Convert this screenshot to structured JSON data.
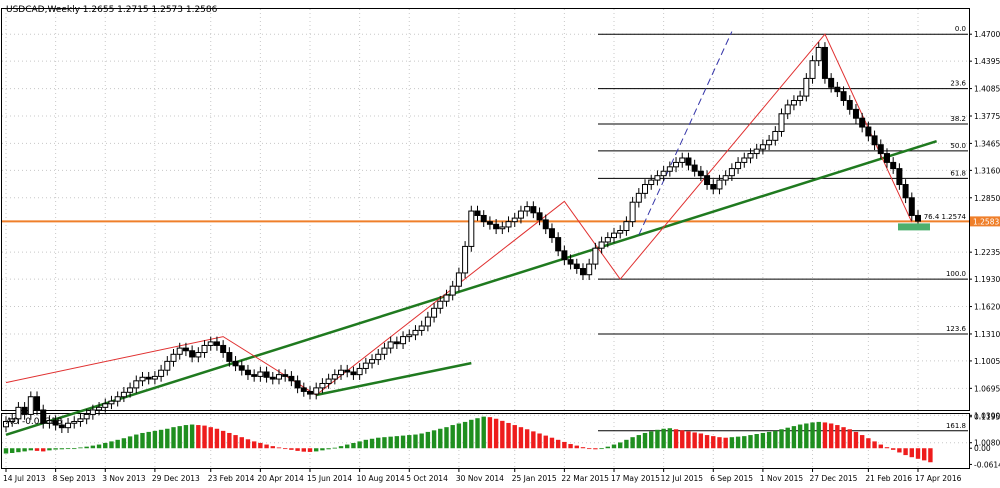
{
  "chart_data": [
    {
      "type": "candlestick",
      "title": "USDCAD,Weekly  1.2655 1.2715 1.2573 1.2586",
      "ylim": [
        1.045,
        1.4985
      ],
      "y_ticks": [
        "1.4700",
        "1.4395",
        "1.4085",
        "1.3775",
        "1.3465",
        "1.3160",
        "1.2850",
        "1.2235",
        "1.1930",
        "1.1620",
        "1.1310",
        "1.1005",
        "1.0695",
        "1.0390",
        "1.0080"
      ],
      "y_tick_values": [
        1.47,
        1.4395,
        1.4085,
        1.3775,
        1.3465,
        1.316,
        1.285,
        1.2235,
        1.193,
        1.162,
        1.131,
        1.1005,
        1.0695,
        1.039,
        1.008
      ],
      "current_price_label": "1.2583",
      "current_price": 1.2583,
      "current_price_color": "#ef7f2a",
      "support_line_color": "#1f7a1f",
      "zigzag_color": "#e03030",
      "fibonacci": {
        "levels": [
          {
            "label": "0.0",
            "price": 1.47
          },
          {
            "label": "23.6",
            "price": 1.4085
          },
          {
            "label": "38.2",
            "price": 1.3685
          },
          {
            "label": "50.0",
            "price": 1.338
          },
          {
            "label": "61.8",
            "price": 1.307
          },
          {
            "label": "76.4 1.2574",
            "price": 1.2574
          },
          {
            "label": "100.0",
            "price": 1.193
          },
          {
            "label": "123.6",
            "price": 1.131
          },
          {
            "label": "161.8",
            "price": 1.0215
          }
        ]
      },
      "trend_lines": [
        {
          "name": "support-main",
          "from": [
            0,
            1.017
          ],
          "to": [
            150,
            1.349
          ]
        },
        {
          "name": "support-lower",
          "from": [
            50,
            1.062
          ],
          "to": [
            75,
            1.098
          ]
        },
        {
          "name": "dashed-channel",
          "from": [
            102,
            1.243
          ],
          "to": [
            117,
            1.473
          ]
        },
        {
          "name": "zigzag",
          "points": [
            [
              0,
              1.076
            ],
            [
              35,
              1.128
            ],
            [
              50,
              1.062
            ],
            [
              90,
              1.281
            ],
            [
              99,
              1.193
            ],
            [
              132,
              1.47
            ],
            [
              146,
              1.2574
            ]
          ]
        }
      ],
      "close": [
        1.032,
        1.035,
        1.048,
        1.04,
        1.06,
        1.045,
        1.03,
        1.033,
        1.028,
        1.025,
        1.03,
        1.032,
        1.035,
        1.04,
        1.045,
        1.048,
        1.052,
        1.055,
        1.06,
        1.065,
        1.07,
        1.078,
        1.082,
        1.08,
        1.083,
        1.09,
        1.1,
        1.108,
        1.115,
        1.112,
        1.105,
        1.11,
        1.118,
        1.122,
        1.118,
        1.11,
        1.1,
        1.095,
        1.09,
        1.085,
        1.083,
        1.088,
        1.082,
        1.08,
        1.085,
        1.083,
        1.078,
        1.07,
        1.066,
        1.063,
        1.07,
        1.075,
        1.08,
        1.085,
        1.09,
        1.088,
        1.085,
        1.092,
        1.098,
        1.102,
        1.108,
        1.115,
        1.122,
        1.12,
        1.128,
        1.13,
        1.135,
        1.14,
        1.15,
        1.16,
        1.168,
        1.175,
        1.185,
        1.2,
        1.23,
        1.27,
        1.265,
        1.258,
        1.255,
        1.25,
        1.252,
        1.258,
        1.262,
        1.27,
        1.275,
        1.268,
        1.26,
        1.25,
        1.24,
        1.225,
        1.215,
        1.21,
        1.205,
        1.198,
        1.21,
        1.228,
        1.235,
        1.24,
        1.245,
        1.248,
        1.258,
        1.28,
        1.29,
        1.3,
        1.305,
        1.31,
        1.315,
        1.32,
        1.325,
        1.33,
        1.322,
        1.315,
        1.31,
        1.3,
        1.295,
        1.305,
        1.31,
        1.318,
        1.325,
        1.33,
        1.335,
        1.34,
        1.345,
        1.35,
        1.36,
        1.38,
        1.39,
        1.395,
        1.4,
        1.42,
        1.44,
        1.455,
        1.42,
        1.41,
        1.405,
        1.395,
        1.385,
        1.375,
        1.365,
        1.355,
        1.345,
        1.335,
        1.325,
        1.318,
        1.3,
        1.285,
        1.265,
        1.2586
      ],
      "x_labels": [
        "14 Jul 2013",
        "8 Sep 2013",
        "3 Nov 2013",
        "29 Dec 2013",
        "23 Feb 2014",
        "20 Apr 2014",
        "15 Jun 2014",
        "10 Aug 2014",
        "5 Oct 2014",
        "30 Nov 2014",
        "25 Jan 2015",
        "22 Mar 2015",
        "17 May 2015",
        "12 Jul 2015",
        "6 Sep 2015",
        "1 Nov 2015",
        "27 Dec 2015",
        "21 Feb 2016",
        "17 Apr 2016"
      ]
    },
    {
      "type": "bar",
      "title": "AO -0.05318",
      "ylim": [
        -0.075,
        0.13
      ],
      "y_ticks": [
        "0.11957",
        "0.00",
        "-0.06141"
      ],
      "y_tick_values": [
        0.11957,
        0.0,
        -0.06141
      ],
      "up_color": "#1f8f1f",
      "down_color": "#ee1c1c",
      "values": [
        -0.02,
        -0.018,
        -0.015,
        -0.012,
        -0.008,
        -0.01,
        -0.012,
        -0.008,
        -0.005,
        -0.004,
        -0.002,
        0.0,
        0.003,
        0.006,
        0.01,
        0.014,
        0.02,
        0.026,
        0.032,
        0.038,
        0.045,
        0.052,
        0.058,
        0.062,
        0.066,
        0.07,
        0.074,
        0.08,
        0.084,
        0.088,
        0.09,
        0.088,
        0.086,
        0.08,
        0.074,
        0.066,
        0.058,
        0.05,
        0.042,
        0.034,
        0.026,
        0.02,
        0.014,
        0.008,
        0.003,
        -0.002,
        -0.006,
        -0.01,
        -0.013,
        -0.014,
        -0.012,
        -0.008,
        -0.004,
        0.002,
        0.008,
        0.014,
        0.02,
        0.026,
        0.032,
        0.036,
        0.04,
        0.042,
        0.044,
        0.046,
        0.048,
        0.05,
        0.052,
        0.056,
        0.062,
        0.068,
        0.074,
        0.08,
        0.088,
        0.094,
        0.1,
        0.108,
        0.114,
        0.12,
        0.118,
        0.112,
        0.104,
        0.096,
        0.088,
        0.08,
        0.072,
        0.064,
        0.056,
        0.048,
        0.04,
        0.032,
        0.024,
        0.016,
        0.01,
        0.004,
        -0.002,
        -0.004,
        0.0,
        0.006,
        0.014,
        0.022,
        0.032,
        0.042,
        0.05,
        0.058,
        0.064,
        0.07,
        0.074,
        0.076,
        0.072,
        0.068,
        0.064,
        0.06,
        0.056,
        0.05,
        0.046,
        0.042,
        0.04,
        0.042,
        0.044,
        0.046,
        0.05,
        0.054,
        0.058,
        0.062,
        0.066,
        0.072,
        0.078,
        0.084,
        0.09,
        0.094,
        0.098,
        0.1,
        0.098,
        0.094,
        0.088,
        0.08,
        0.072,
        0.062,
        0.05,
        0.038,
        0.026,
        0.014,
        0.004,
        -0.006,
        -0.016,
        -0.026,
        -0.034,
        -0.04,
        -0.046,
        -0.05318
      ]
    }
  ]
}
